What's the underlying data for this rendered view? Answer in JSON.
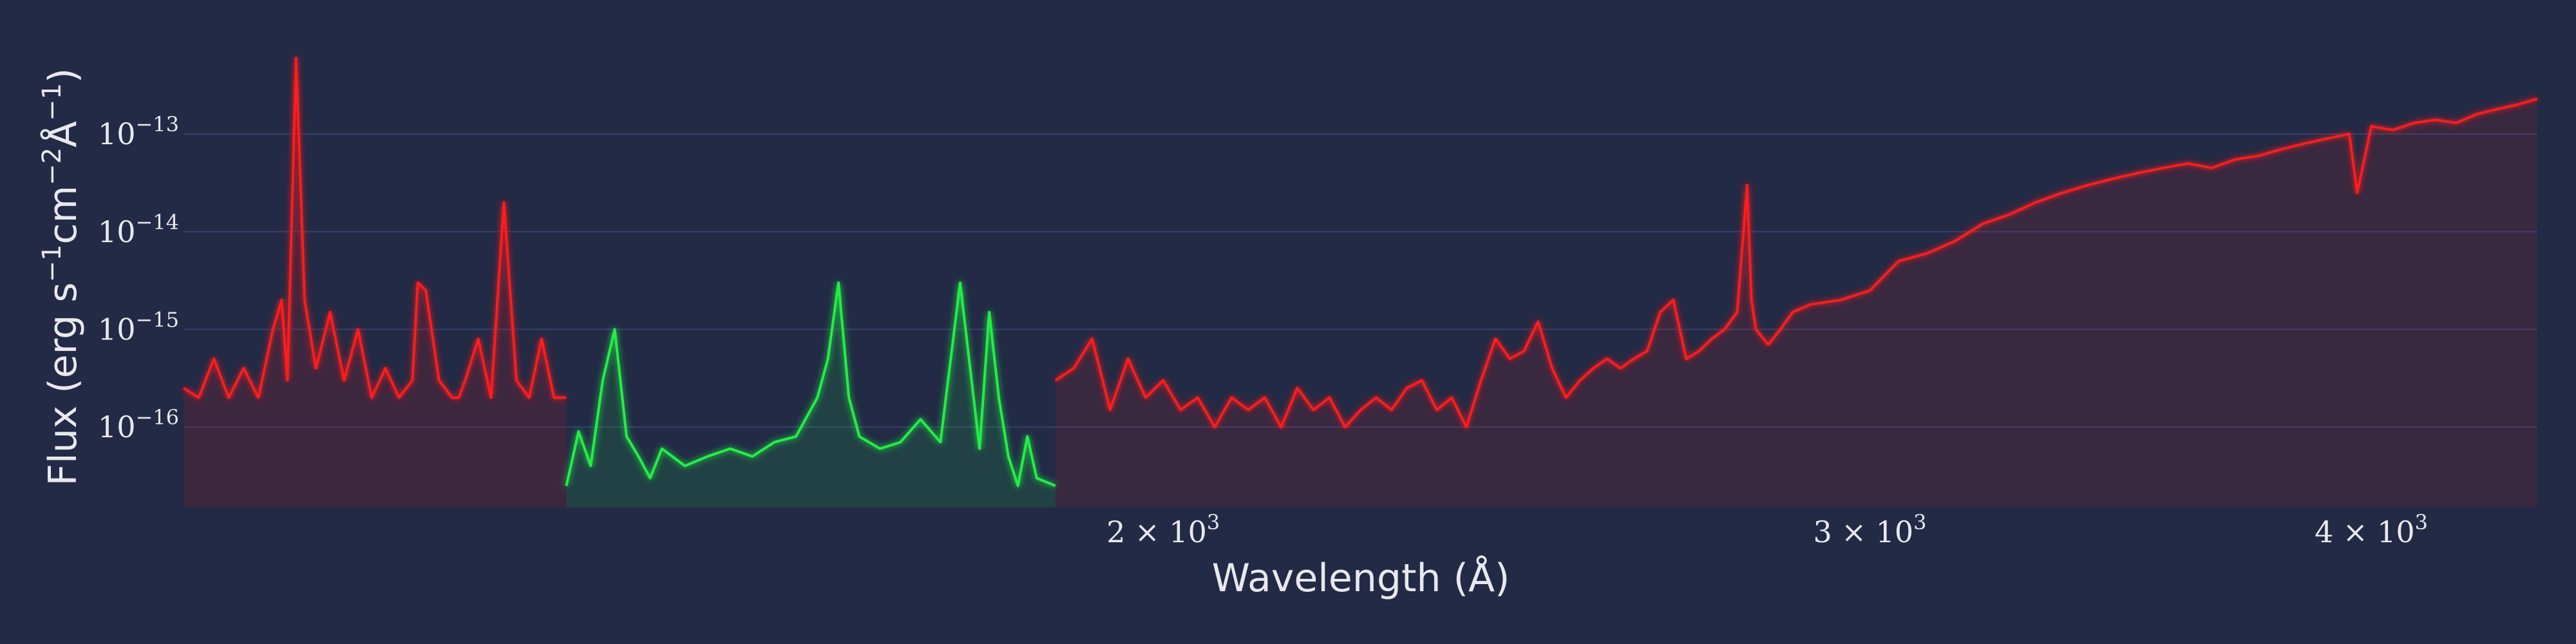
{
  "chart_data": {
    "type": "line",
    "title": "",
    "xlabel": "Wavelength (Å)",
    "ylabel_parts": [
      "Flux (erg s",
      "−1",
      "cm",
      "−2",
      "Å",
      "−1",
      ")"
    ],
    "x_scale": "log",
    "y_scale": "log",
    "xlim": [
      1140,
      4400
    ],
    "ylim": [
      1.5e-17,
      7e-13
    ],
    "x_ticks": [
      {
        "value": 2000,
        "mantissa": "2 × 10",
        "exponent": "3"
      },
      {
        "value": 3000,
        "mantissa": "3 × 10",
        "exponent": "3"
      },
      {
        "value": 4000,
        "mantissa": "4 × 10",
        "exponent": "3"
      }
    ],
    "y_ticks": [
      {
        "value": 1e-13,
        "base": "10",
        "exponent": "−13"
      },
      {
        "value": 1e-14,
        "base": "10",
        "exponent": "−14"
      },
      {
        "value": 1e-15,
        "base": "10",
        "exponent": "−15"
      },
      {
        "value": 1e-16,
        "base": "10",
        "exponent": "−16"
      }
    ],
    "grid": true,
    "legend": "none",
    "series": [
      {
        "color": "#ff1a1a",
        "x": [
          1140,
          1150,
          1160,
          1170,
          1180,
          1190,
          1200,
          1206,
          1210,
          1216,
          1222,
          1230,
          1240,
          1250,
          1260,
          1270,
          1280,
          1290,
          1300,
          1304,
          1310,
          1320,
          1330,
          1335,
          1340,
          1350,
          1360,
          1370,
          1380,
          1390,
          1400,
          1410,
          1420
        ],
        "y": [
          2.5e-16,
          2e-16,
          5e-16,
          2e-16,
          4e-16,
          2e-16,
          1e-15,
          2e-15,
          3e-16,
          6e-13,
          2e-15,
          4e-16,
          1.5e-15,
          3e-16,
          1e-15,
          2e-16,
          4e-16,
          2e-16,
          3e-16,
          3e-15,
          2.5e-15,
          3e-16,
          2e-16,
          2e-16,
          3e-16,
          8e-16,
          2e-16,
          2e-14,
          3e-16,
          2e-16,
          8e-16,
          2e-16,
          2e-16
        ]
      },
      {
        "color": "#22ee44",
        "x": [
          1420,
          1430,
          1440,
          1450,
          1460,
          1470,
          1480,
          1490,
          1500,
          1520,
          1540,
          1560,
          1580,
          1600,
          1620,
          1640,
          1650,
          1660,
          1670,
          1680,
          1700,
          1720,
          1740,
          1760,
          1780,
          1800,
          1810,
          1820,
          1830,
          1840,
          1850,
          1860,
          1880
        ],
        "y": [
          2.5e-17,
          9e-17,
          4e-17,
          3e-16,
          1e-15,
          8e-17,
          5e-17,
          3e-17,
          6e-17,
          4e-17,
          5e-17,
          6e-17,
          5e-17,
          7e-17,
          8e-17,
          2e-16,
          5e-16,
          3e-15,
          2e-16,
          8e-17,
          6e-17,
          7e-17,
          1.2e-16,
          7e-17,
          3e-15,
          6e-17,
          1.5e-15,
          2e-16,
          5e-17,
          2.5e-17,
          8e-17,
          3e-17,
          2.5e-17
        ]
      },
      {
        "color": "#ff1a1a",
        "x": [
          1880,
          1900,
          1920,
          1940,
          1960,
          1980,
          2000,
          2020,
          2040,
          2060,
          2080,
          2100,
          2120,
          2140,
          2160,
          2180,
          2200,
          2220,
          2240,
          2260,
          2280,
          2300,
          2320,
          2340,
          2360,
          2380,
          2400,
          2420,
          2440,
          2460,
          2480,
          2500,
          2520,
          2540,
          2560,
          2580,
          2600,
          2620,
          2640,
          2660,
          2680,
          2700,
          2720,
          2740,
          2760,
          2780,
          2796,
          2803,
          2810,
          2830,
          2850,
          2870,
          2900,
          2950,
          3000,
          3050,
          3100,
          3150,
          3200,
          3250,
          3300,
          3350,
          3400,
          3450,
          3500,
          3550,
          3600,
          3650,
          3700,
          3750,
          3800,
          3850,
          3900,
          3950,
          3968,
          4000,
          4050,
          4100,
          4150,
          4200,
          4250,
          4300,
          4350,
          4400
        ],
        "y": [
          3e-16,
          4e-16,
          8e-16,
          1.5e-16,
          5e-16,
          2e-16,
          3e-16,
          1.5e-16,
          2e-16,
          1e-16,
          2e-16,
          1.5e-16,
          2e-16,
          1e-16,
          2.5e-16,
          1.5e-16,
          2e-16,
          1e-16,
          1.5e-16,
          2e-16,
          1.5e-16,
          2.5e-16,
          3e-16,
          1.5e-16,
          2e-16,
          1e-16,
          3e-16,
          8e-16,
          5e-16,
          6e-16,
          1.2e-15,
          4e-16,
          2e-16,
          3e-16,
          4e-16,
          5e-16,
          4e-16,
          5e-16,
          6e-16,
          1.5e-15,
          2e-15,
          5e-16,
          6e-16,
          8e-16,
          1e-15,
          1.5e-15,
          3e-14,
          2e-15,
          1e-15,
          7e-16,
          1e-15,
          1.5e-15,
          1.8e-15,
          2e-15,
          2.5e-15,
          5e-15,
          6e-15,
          8e-15,
          1.2e-14,
          1.5e-14,
          2e-14,
          2.5e-14,
          3e-14,
          3.5e-14,
          4e-14,
          4.5e-14,
          5e-14,
          4.5e-14,
          5.5e-14,
          6e-14,
          7e-14,
          8e-14,
          9e-14,
          1e-13,
          2.5e-14,
          1.2e-13,
          1.1e-13,
          1.3e-13,
          1.4e-13,
          1.3e-13,
          1.6e-13,
          1.8e-13,
          2e-13,
          2.3e-13
        ]
      }
    ]
  }
}
